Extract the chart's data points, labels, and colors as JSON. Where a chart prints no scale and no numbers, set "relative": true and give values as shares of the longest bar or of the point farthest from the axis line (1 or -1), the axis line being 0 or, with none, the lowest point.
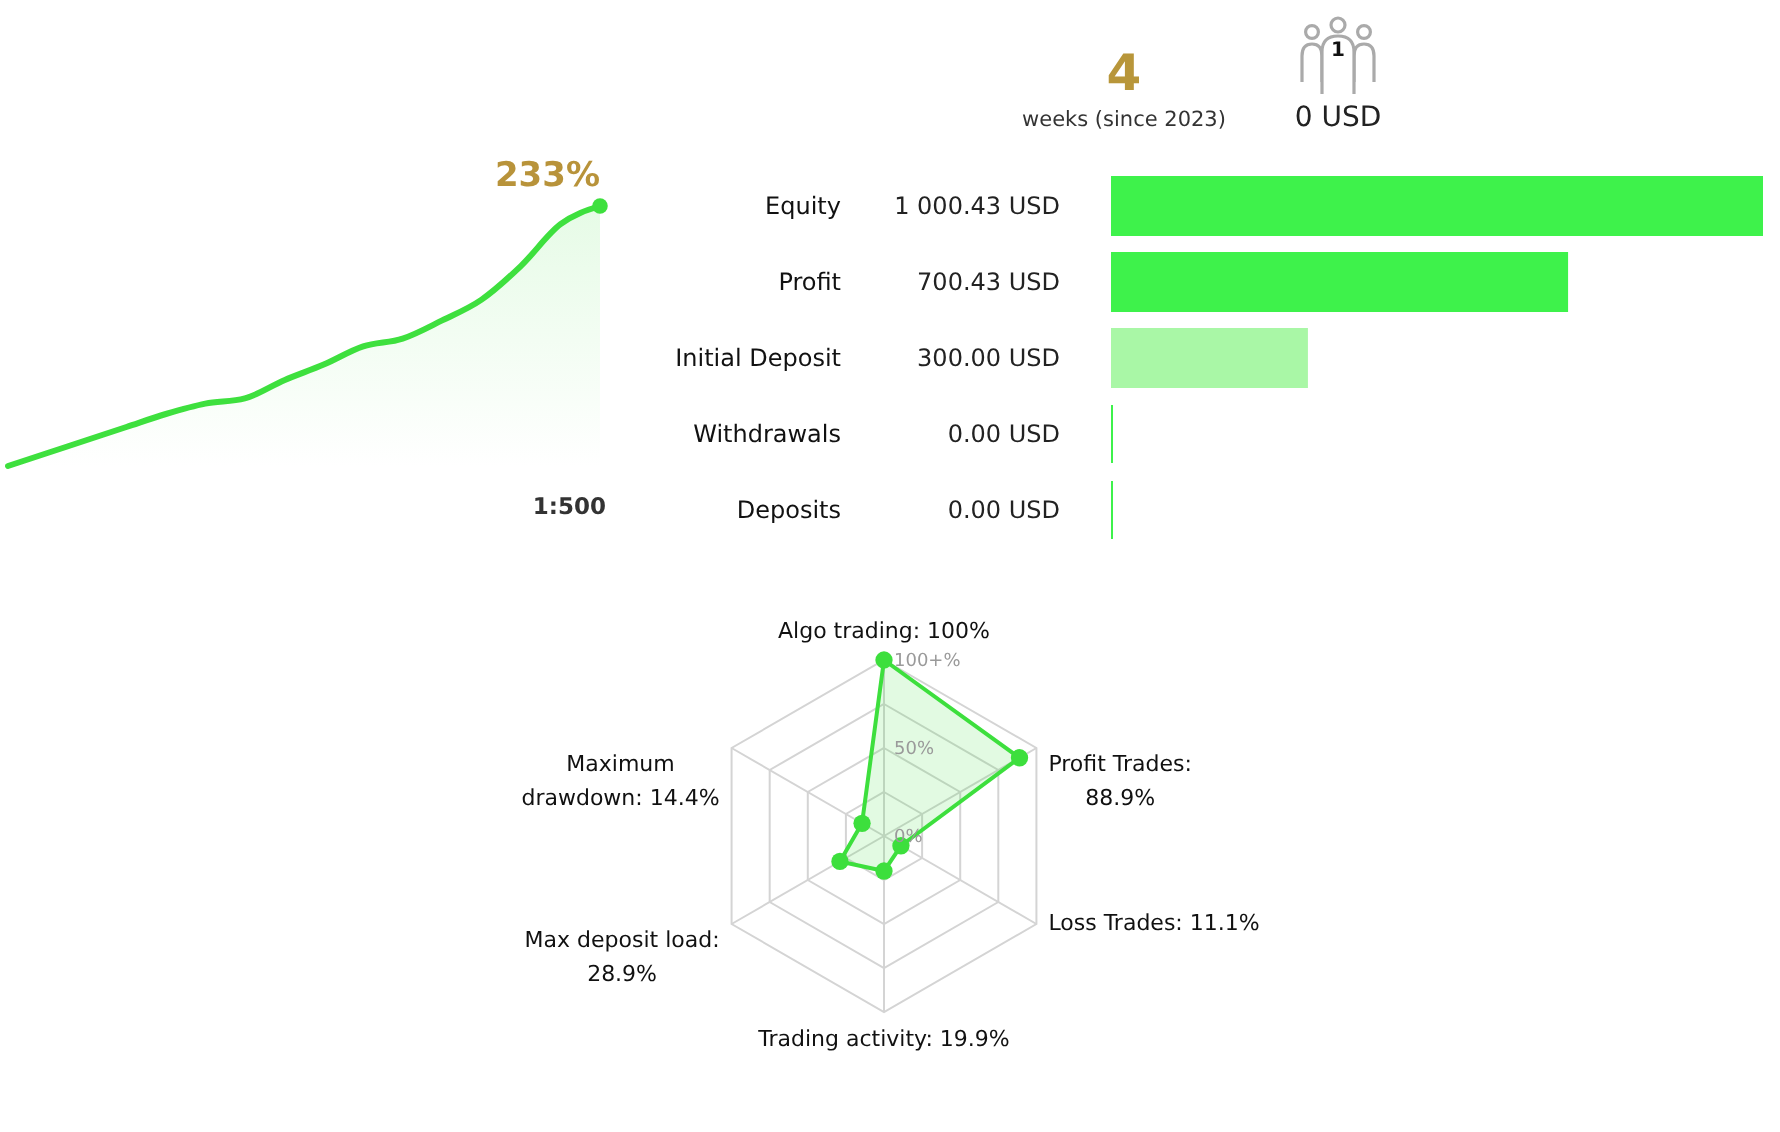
{
  "chart_data": [
    {
      "type": "area",
      "relative": true,
      "tick_labels": false,
      "categories": [
        null,
        null,
        null,
        null,
        null,
        null,
        null,
        null,
        null,
        null,
        null,
        null,
        null,
        null,
        null,
        null
      ],
      "series": [
        {
          "color": "#3ee03e",
          "values": [
            0,
            0.05,
            0.1,
            0.15,
            0.2,
            0.24,
            0.26,
            0.33,
            0.39,
            0.46,
            0.49,
            0.56,
            0.64,
            0.77,
            0.93,
            1
          ]
        }
      ],
      "annotations": [
        "233%",
        "1:500"
      ]
    },
    {
      "type": "bar",
      "orientation": "horizontal",
      "tick_labels": "y",
      "categories": [
        "Equity",
        "Profit",
        "Initial Deposit",
        "Withdrawals",
        "Deposits"
      ],
      "values": [
        1000.43,
        700.43,
        300.0,
        0,
        0
      ],
      "value_labels": [
        "1 000.43 USD",
        "700.43 USD",
        "300.00 USD",
        "0.00 USD",
        "0.00 USD"
      ],
      "colors": [
        "#3ef24b",
        "#3ef24b",
        "#a9f7a6",
        "#3ef24b",
        "#3ef24b"
      ]
    },
    {
      "type": "other",
      "annotations": [
        "4",
        "weeks (since 2023)",
        "1",
        "0 USD"
      ]
    },
    {
      "type": "radar",
      "categories": [
        "Algo trading: 100%",
        "Profit Trades: 88.9%",
        "Loss Trades: 11.1%",
        "Trading activity: 19.9%",
        "Max deposit load: 28.9%",
        "Maximum drawdown: 14.4%"
      ],
      "series": [
        {
          "color": "#3ddf3d",
          "values": [
            100,
            88.9,
            11.1,
            19.9,
            28.9,
            14.4
          ]
        }
      ],
      "ylim": [
        0,
        100
      ],
      "yticks": [
        {
          "value": 0,
          "label": "0%"
        },
        {
          "value": 50,
          "label": "50%"
        },
        {
          "value": 100,
          "label": "100+%"
        }
      ],
      "marker": "circle",
      "grid": true
    }
  ]
}
